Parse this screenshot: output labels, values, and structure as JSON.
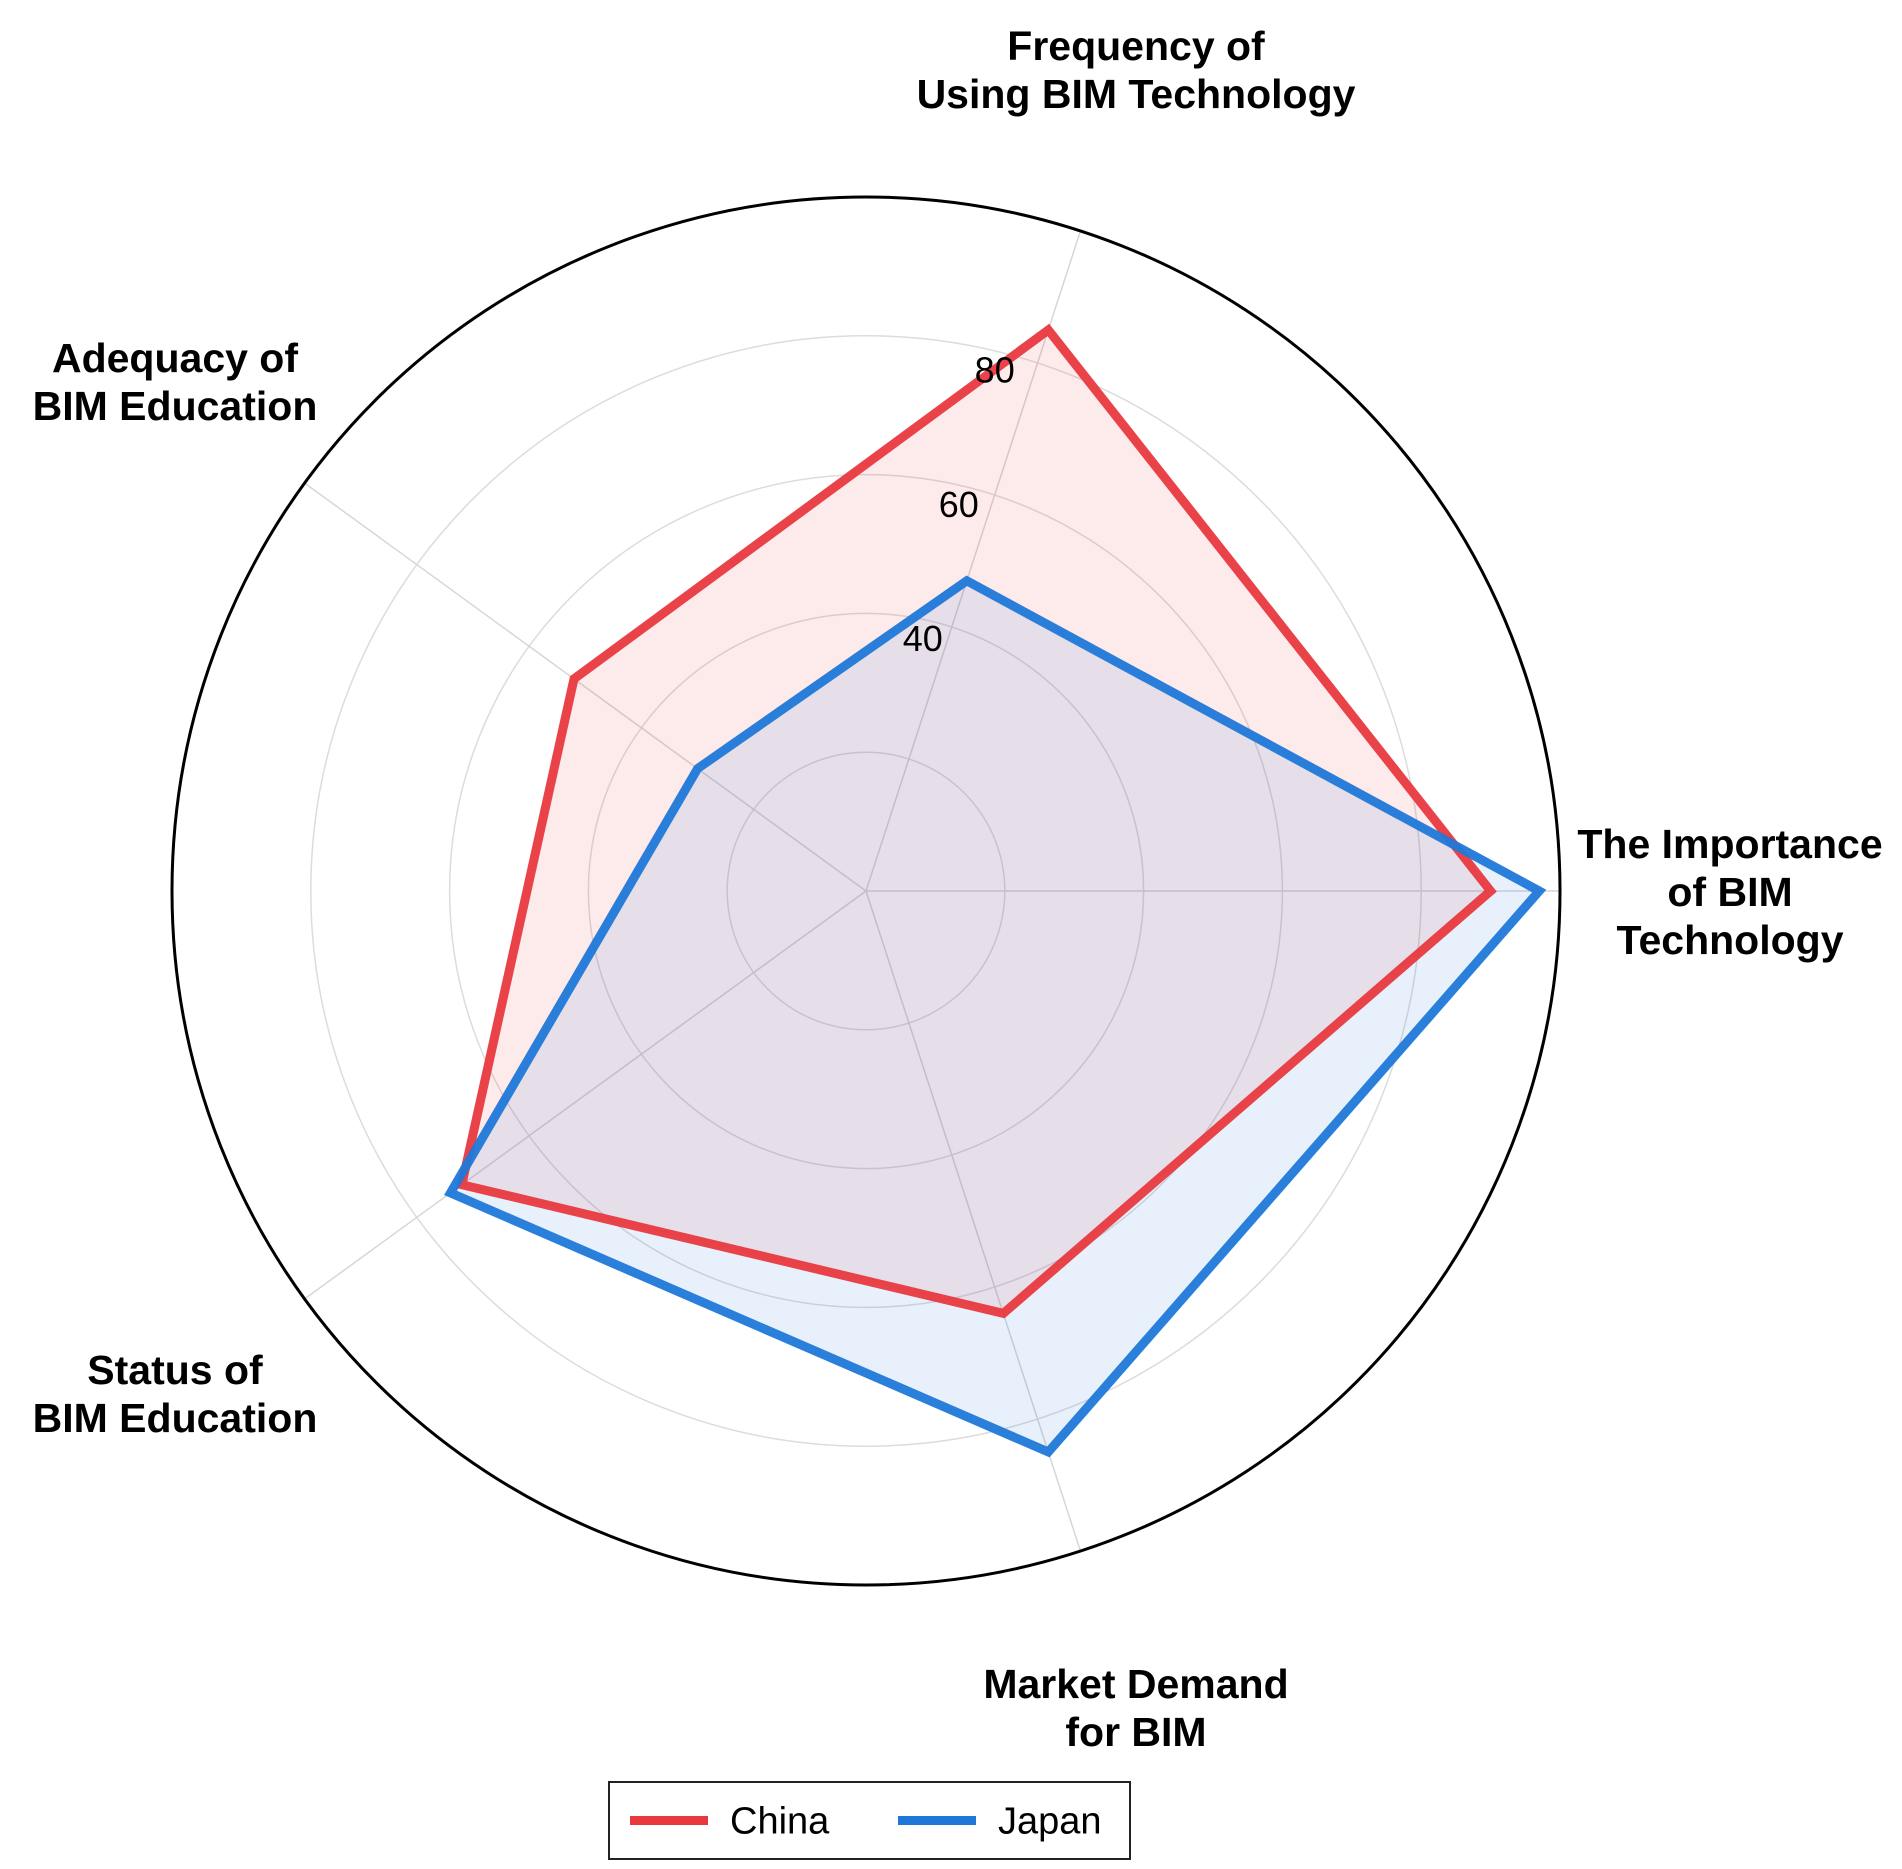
{
  "chart_data": {
    "type": "radar",
    "axes": [
      {
        "label_lines": [
          "The Importance",
          "of BIM",
          "Technology"
        ]
      },
      {
        "label_lines": [
          "Frequency of",
          "Using BIM Technology"
        ]
      },
      {
        "label_lines": [
          "Adequacy of",
          "BIM Education"
        ]
      },
      {
        "label_lines": [
          "Status of",
          "BIM Education"
        ]
      },
      {
        "label_lines": [
          "Market Demand",
          "for BIM"
        ]
      }
    ],
    "r_ticks": [
      40,
      60,
      80
    ],
    "rlim": [
      0,
      100
    ],
    "grid": true,
    "legend_position": "bottom-center",
    "series": [
      {
        "name": "China",
        "color": "#e8393f",
        "fill": "#fde9ea",
        "values": [
          90,
          85,
          52,
          72,
          64
        ]
      },
      {
        "name": "Japan",
        "color": "#1f78d8",
        "fill": "#e3effa",
        "values": [
          97,
          47,
          30,
          74,
          85
        ]
      }
    ]
  }
}
